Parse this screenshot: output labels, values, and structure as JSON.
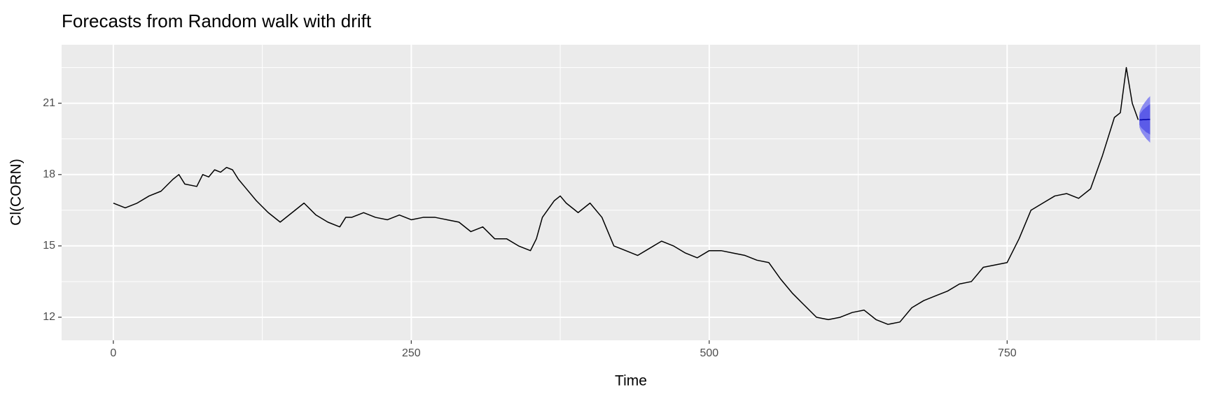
{
  "chart_data": {
    "type": "line",
    "title": "Forecasts from Random walk with drift",
    "xlabel": "Time",
    "ylabel": "Cl(CORN)",
    "xlim": [
      -43.4,
      912
    ],
    "ylim": [
      11.03,
      23.46
    ],
    "xticks": [
      0,
      250,
      500,
      750
    ],
    "yticks": [
      12,
      15,
      18,
      21
    ],
    "x_minor_ticks": [
      125,
      375,
      625,
      875
    ],
    "y_minor_ticks": [
      13.5,
      16.5,
      19.5,
      22.5
    ],
    "grid": true,
    "color": "#000000",
    "x": [
      0,
      10,
      20,
      30,
      40,
      50,
      55,
      60,
      70,
      75,
      80,
      85,
      90,
      95,
      100,
      105,
      110,
      120,
      130,
      140,
      150,
      160,
      170,
      180,
      190,
      195,
      200,
      210,
      220,
      230,
      240,
      250,
      260,
      270,
      280,
      290,
      300,
      310,
      320,
      330,
      340,
      350,
      355,
      360,
      370,
      375,
      380,
      390,
      400,
      410,
      420,
      430,
      440,
      450,
      460,
      470,
      480,
      490,
      500,
      510,
      520,
      530,
      540,
      550,
      560,
      570,
      580,
      590,
      600,
      610,
      620,
      630,
      640,
      650,
      660,
      670,
      680,
      690,
      700,
      710,
      720,
      730,
      740,
      750,
      760,
      770,
      780,
      790,
      800,
      810,
      820,
      830,
      840,
      845,
      850,
      855,
      860
    ],
    "values": [
      16.8,
      16.6,
      16.8,
      17.1,
      17.3,
      17.8,
      18.0,
      17.6,
      17.5,
      18.0,
      17.9,
      18.2,
      18.1,
      18.3,
      18.2,
      17.8,
      17.5,
      16.9,
      16.4,
      16.0,
      16.4,
      16.8,
      16.3,
      16.0,
      15.8,
      16.2,
      16.2,
      16.4,
      16.2,
      16.1,
      16.3,
      16.1,
      16.2,
      16.2,
      16.1,
      16.0,
      15.6,
      15.8,
      15.3,
      15.3,
      15.0,
      14.8,
      15.3,
      16.2,
      16.9,
      17.1,
      16.8,
      16.4,
      16.8,
      16.2,
      15.0,
      14.8,
      14.6,
      14.9,
      15.2,
      15.0,
      14.7,
      14.5,
      14.8,
      14.8,
      14.7,
      14.6,
      14.4,
      14.3,
      13.6,
      13.0,
      12.5,
      12.0,
      11.9,
      12.0,
      12.2,
      12.3,
      11.9,
      11.7,
      11.8,
      12.4,
      12.7,
      12.9,
      13.1,
      13.4,
      13.5,
      14.1,
      14.2,
      14.3,
      15.3,
      16.5,
      16.8,
      17.1,
      17.2,
      17.0,
      17.4,
      18.8,
      20.4,
      20.6,
      22.5,
      21.0,
      20.3
    ],
    "forecast": {
      "x": [
        861,
        862,
        863,
        864,
        865,
        866,
        867,
        868,
        869,
        870
      ],
      "mean": [
        20.3,
        20.3,
        20.3,
        20.31,
        20.31,
        20.31,
        20.31,
        20.32,
        20.32,
        20.32
      ],
      "lower80": [
        20.1,
        20.01,
        19.95,
        19.9,
        19.86,
        19.81,
        19.77,
        19.75,
        19.71,
        19.68
      ],
      "upper80": [
        20.5,
        20.59,
        20.65,
        20.72,
        20.76,
        20.81,
        20.85,
        20.89,
        20.93,
        20.96
      ],
      "lower95": [
        19.99,
        19.86,
        19.76,
        19.69,
        19.62,
        19.55,
        19.49,
        19.44,
        19.39,
        19.34
      ],
      "upper95": [
        20.61,
        20.74,
        20.84,
        20.93,
        21.0,
        21.07,
        21.13,
        21.2,
        21.25,
        21.3
      ],
      "color": "#0000aa",
      "color80": "#5b5be8",
      "color95": "#8c8cf0"
    }
  }
}
